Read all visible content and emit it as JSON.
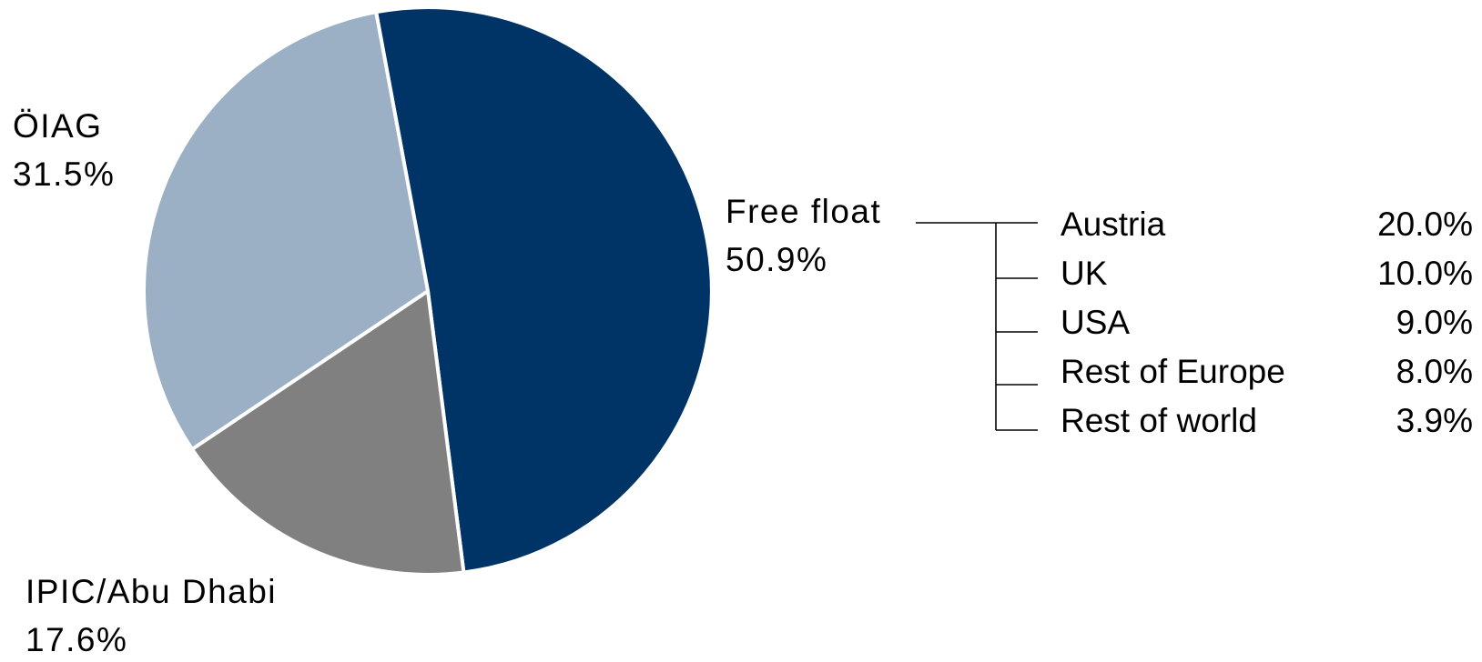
{
  "chart_data": {
    "type": "pie",
    "slices": [
      {
        "label": "Free float",
        "value": 50.9,
        "value_label": "50.9%",
        "color": "#003366"
      },
      {
        "label": "IPIC/Abu Dhabi",
        "value": 17.6,
        "value_label": "17.6%",
        "color": "#808080"
      },
      {
        "label": "ÖIAG",
        "value": 31.5,
        "value_label": "31.5%",
        "color": "#9bafc5"
      }
    ],
    "breakdown": {
      "parent": "Free float",
      "items": [
        {
          "label": "Austria",
          "value": 20.0,
          "value_label": "20.0%"
        },
        {
          "label": "UK",
          "value": 10.0,
          "value_label": "10.0%"
        },
        {
          "label": "USA",
          "value": 9.0,
          "value_label": "9.0%"
        },
        {
          "label": "Rest of Europe",
          "value": 8.0,
          "value_label": "8.0%"
        },
        {
          "label": "Rest of world",
          "value": 3.9,
          "value_label": "3.9%"
        }
      ]
    },
    "start_angle_deg": -10.5,
    "direction": "clockwise",
    "slice_separator_color": "#ffffff"
  }
}
